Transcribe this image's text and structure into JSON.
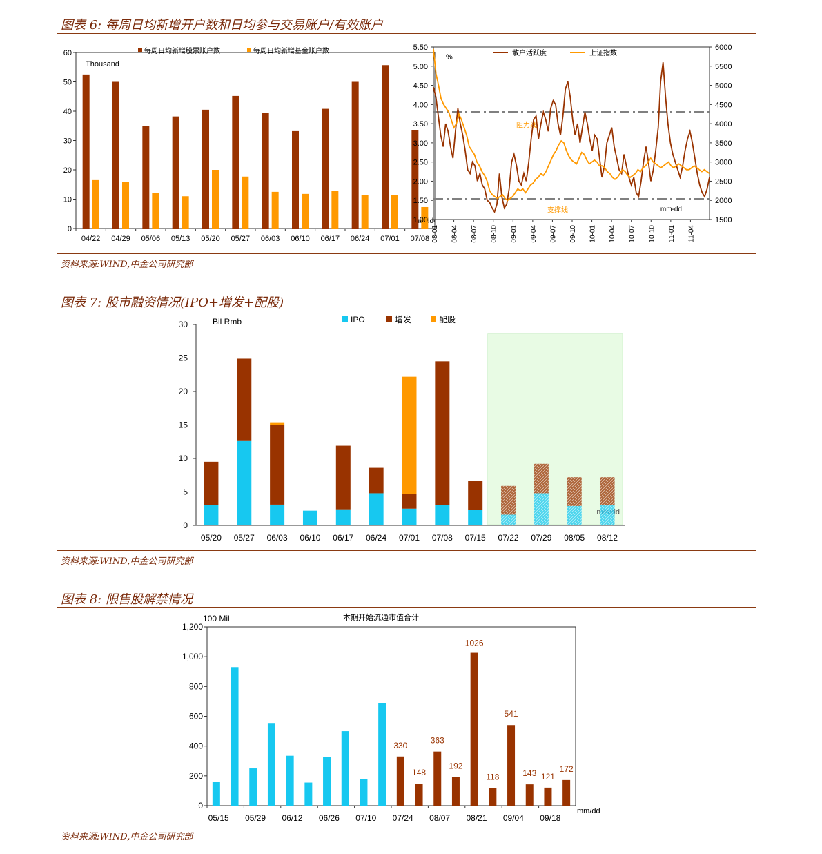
{
  "fig6": {
    "title": "图表 6:  每周日均新增开户数和日均参与交易账户/有效账户",
    "source": "资料来源:WIND,中金公司研究部"
  },
  "fig7": {
    "title": "图表 7:  股市融资情况(IPO+增发+配股)",
    "source": "资料来源:WIND,中金公司研究部"
  },
  "fig8": {
    "title": "图表 8:  限售股解禁情况",
    "source": "资料来源:WIND,中金公司研究部"
  },
  "colors": {
    "dark_red": "#993300",
    "orange": "#ff9900",
    "cyan": "#17c8f0",
    "gray_dash": "#808080",
    "shade": "#e8fbe4",
    "title_red": "#7a2a0a"
  },
  "chart_data": [
    {
      "id": "chart-weekly-accounts",
      "type": "bar",
      "unit_label": "Thousand",
      "x_unit": "mm/dd",
      "ylim": [
        0,
        60
      ],
      "yticks": [
        "0",
        "10",
        "20",
        "30",
        "40",
        "50",
        "60"
      ],
      "categories": [
        "04/22",
        "04/29",
        "05/06",
        "05/13",
        "05/20",
        "05/27",
        "06/03",
        "06/10",
        "06/17",
        "06/24",
        "07/01",
        "07/08"
      ],
      "series": [
        {
          "name": "每周日均新增股票账户数",
          "color": "#993300",
          "values": [
            52.5,
            50.0,
            35.0,
            38.2,
            40.5,
            45.2,
            39.3,
            33.2,
            40.8,
            50.0,
            55.7,
            33.6
          ]
        },
        {
          "name": "每周日均新增基金账户数",
          "color": "#ff9900",
          "values": [
            16.5,
            16.0,
            12.0,
            11.0,
            20.0,
            17.7,
            12.5,
            11.8,
            12.8,
            11.3,
            11.3,
            7.3
          ]
        }
      ],
      "legend": "top-center",
      "grid": false
    },
    {
      "id": "chart-activity-index",
      "type": "line",
      "left_unit": "%",
      "x_unit": "mm-dd",
      "ylim_left": [
        1.0,
        5.5
      ],
      "yticks_left": [
        "1.00",
        "1.50",
        "2.00",
        "2.50",
        "3.00",
        "3.50",
        "4.00",
        "4.50",
        "5.00",
        "5.50"
      ],
      "ylim_right": [
        1500,
        6000
      ],
      "yticks_right": [
        "1500",
        "2000",
        "2500",
        "3000",
        "3500",
        "4000",
        "4500",
        "5000",
        "5500",
        "6000"
      ],
      "x_ticks": [
        "08-01",
        "08-04",
        "08-07",
        "08-10",
        "09-01",
        "09-04",
        "09-07",
        "09-10",
        "10-01",
        "10-04",
        "10-07",
        "10-10",
        "11-01",
        "11-04"
      ],
      "series": [
        {
          "name": "散户活跃度",
          "color": "#993300",
          "axis": "left",
          "values": [
            4.45,
            4.2,
            3.7,
            3.2,
            2.9,
            3.5,
            3.3,
            2.9,
            2.6,
            3.3,
            3.9,
            3.5,
            3.2,
            2.8,
            2.3,
            2.2,
            2.5,
            2.4,
            2.0,
            2.2,
            1.9,
            1.8,
            1.5,
            1.45,
            1.3,
            1.2,
            1.4,
            2.2,
            1.6,
            1.3,
            1.4,
            1.8,
            2.5,
            2.7,
            2.4,
            2.0,
            1.9,
            2.2,
            2.0,
            2.5,
            3.1,
            3.6,
            3.7,
            3.1,
            3.5,
            3.8,
            3.6,
            3.3,
            3.9,
            4.1,
            4.0,
            3.5,
            3.2,
            3.7,
            4.4,
            4.6,
            4.2,
            3.6,
            3.2,
            3.5,
            3.0,
            3.4,
            3.8,
            3.5,
            3.1,
            2.8,
            3.2,
            3.1,
            2.6,
            2.1,
            2.4,
            3.0,
            3.2,
            3.4,
            2.9,
            2.6,
            2.3,
            2.2,
            2.7,
            2.4,
            2.1,
            1.9,
            2.1,
            1.7,
            1.6,
            2.0,
            2.5,
            2.9,
            2.5,
            2.0,
            2.3,
            2.8,
            3.4,
            4.6,
            5.1,
            4.2,
            3.5,
            3.0,
            2.7,
            2.5,
            2.3,
            2.1,
            2.4,
            2.8,
            3.1,
            3.3,
            3.0,
            2.6,
            2.2,
            1.9,
            1.7,
            1.6,
            1.8,
            2.1
          ]
        },
        {
          "name": "上证指数",
          "color": "#ff9900",
          "axis": "right",
          "values": [
            5950,
            5300,
            5000,
            4650,
            4500,
            4400,
            4300,
            4100,
            3900,
            4000,
            4250,
            4100,
            3900,
            3700,
            3400,
            3300,
            3200,
            3000,
            2900,
            2750,
            2650,
            2500,
            2250,
            2150,
            2100,
            2050,
            2100,
            2150,
            2050,
            2000,
            2050,
            2100,
            2200,
            2300,
            2250,
            2300,
            2200,
            2300,
            2400,
            2450,
            2550,
            2600,
            2700,
            2650,
            2750,
            2900,
            3050,
            3200,
            3300,
            3450,
            3550,
            3500,
            3300,
            3150,
            3050,
            3000,
            2950,
            3100,
            3250,
            3200,
            3050,
            2950,
            3000,
            3050,
            3000,
            2900,
            2900,
            2850,
            2750,
            2700,
            2600,
            2550,
            2600,
            2700,
            2800,
            2750,
            2650,
            2600,
            2650,
            2700,
            2800,
            2750,
            2850,
            2900,
            3000,
            3100,
            3000,
            2950,
            2900,
            2850,
            2900,
            2950,
            3000,
            2900,
            2850,
            2900,
            2950,
            2900,
            2850,
            2800,
            2800,
            2850,
            2900,
            2850,
            2800,
            2750,
            2800,
            2750,
            2700
          ]
        }
      ],
      "reference_lines": [
        {
          "label": "阻力线",
          "value": 3.8,
          "axis": "left"
        },
        {
          "label": "支撑线",
          "value": 1.53,
          "axis": "left"
        }
      ],
      "legend": "top-center",
      "grid": false
    },
    {
      "id": "chart-financing",
      "type": "bar",
      "stacked": true,
      "unit_label": "Bil Rmb",
      "x_unit": "mm/dd",
      "ylim": [
        0,
        30
      ],
      "yticks": [
        "0",
        "5",
        "10",
        "15",
        "20",
        "25",
        "30"
      ],
      "categories": [
        "05/20",
        "05/27",
        "06/03",
        "06/10",
        "06/17",
        "06/24",
        "07/01",
        "07/08",
        "07/15",
        "07/22",
        "07/29",
        "08/05",
        "08/12"
      ],
      "forecast_from_index": 9,
      "series": [
        {
          "name": "IPO",
          "color": "#17c8f0",
          "values": [
            3.0,
            12.6,
            3.1,
            2.2,
            2.4,
            4.8,
            2.5,
            3.0,
            2.3,
            1.6,
            4.8,
            2.9,
            3.0
          ]
        },
        {
          "name": "增发",
          "color": "#993300",
          "values": [
            6.5,
            12.3,
            11.9,
            0,
            9.5,
            3.8,
            2.2,
            21.5,
            4.3,
            4.3,
            4.4,
            4.3,
            4.2
          ]
        },
        {
          "name": "配股",
          "color": "#ff9900",
          "values": [
            0,
            0,
            0.4,
            0,
            0,
            0,
            17.5,
            0,
            0,
            0,
            0,
            0,
            0
          ]
        }
      ],
      "legend": "top-center",
      "grid": false
    },
    {
      "id": "chart-lockup",
      "type": "bar",
      "title": "本期开始流通市值合计",
      "unit_label": "100 Mil",
      "x_unit": "mm/dd",
      "ylim": [
        0,
        1200
      ],
      "yticks": [
        "0",
        "200",
        "400",
        "600",
        "800",
        "1,000",
        "1,200"
      ],
      "x_ticks": [
        "05/15",
        "05/29",
        "06/12",
        "06/26",
        "07/10",
        "07/24",
        "08/07",
        "08/21",
        "09/04",
        "09/18"
      ],
      "values": [
        160,
        930,
        250,
        555,
        335,
        155,
        325,
        500,
        180,
        690,
        330,
        148,
        363,
        192,
        1026,
        118,
        541,
        143,
        121,
        172
      ],
      "colors_by_index": [
        "#17c8f0",
        "#17c8f0",
        "#17c8f0",
        "#17c8f0",
        "#17c8f0",
        "#17c8f0",
        "#17c8f0",
        "#17c8f0",
        "#17c8f0",
        "#17c8f0",
        "#993300",
        "#993300",
        "#993300",
        "#993300",
        "#993300",
        "#993300",
        "#993300",
        "#993300",
        "#993300",
        "#993300"
      ],
      "data_labels": [
        "",
        "",
        "",
        "",
        "",
        "",
        "",
        "",
        "",
        "",
        "330",
        "148",
        "363",
        "192",
        "1026",
        "118",
        "541",
        "143",
        "121",
        "172"
      ],
      "grid": false
    }
  ]
}
